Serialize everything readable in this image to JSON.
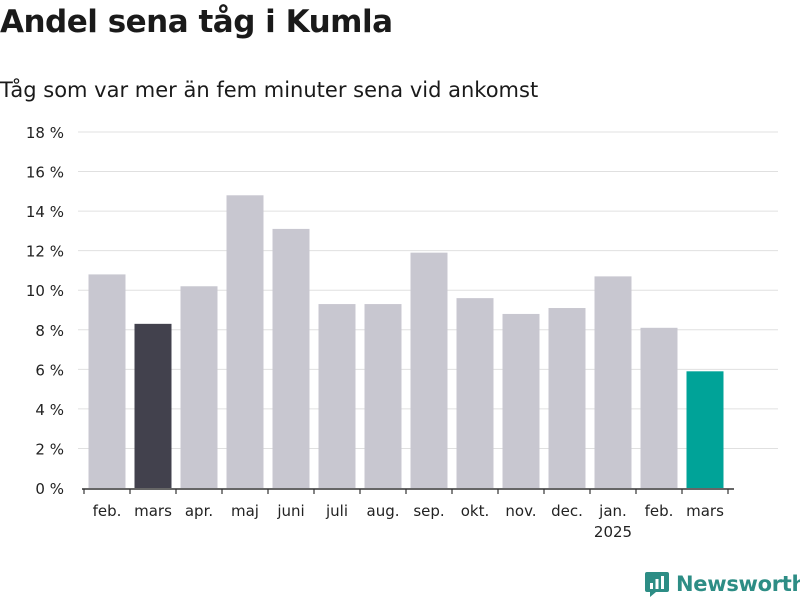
{
  "title": "Andel sena tåg i Kumla",
  "subtitle": "Tåg som var mer än fem minuter sena vid ankomst",
  "brand": "Newsworthy",
  "colors": {
    "default_bar": "#c8c7d0",
    "highlight_previous": "#42414d",
    "highlight_latest": "#00a398",
    "grid": "#e0e0e0",
    "axis": "#333333",
    "brand": "#2d8d85"
  },
  "chart_data": {
    "type": "bar",
    "categories": [
      "feb.",
      "mars",
      "apr.",
      "maj",
      "juni",
      "juli",
      "aug.",
      "sep.",
      "okt.",
      "nov.",
      "dec.",
      "jan.",
      "feb.",
      "mars"
    ],
    "category_sublabels": [
      "",
      "",
      "",
      "",
      "",
      "",
      "",
      "",
      "",
      "",
      "",
      "2025",
      "",
      ""
    ],
    "values": [
      10.8,
      8.3,
      10.2,
      14.8,
      13.1,
      9.3,
      9.3,
      11.9,
      9.6,
      8.8,
      9.1,
      10.7,
      8.1,
      5.9
    ],
    "bar_colors": [
      "default_bar",
      "highlight_previous",
      "default_bar",
      "default_bar",
      "default_bar",
      "default_bar",
      "default_bar",
      "default_bar",
      "default_bar",
      "default_bar",
      "default_bar",
      "default_bar",
      "default_bar",
      "highlight_latest"
    ],
    "ylim": [
      0,
      18
    ],
    "yticks": [
      0,
      2,
      4,
      6,
      8,
      10,
      12,
      14,
      16,
      18
    ],
    "ytick_labels": [
      "0 %",
      "2 %",
      "4 %",
      "6 %",
      "8 %",
      "10 %",
      "12 %",
      "14 %",
      "16 %",
      "18 %"
    ],
    "grid": true,
    "xlabel": "",
    "ylabel": ""
  }
}
